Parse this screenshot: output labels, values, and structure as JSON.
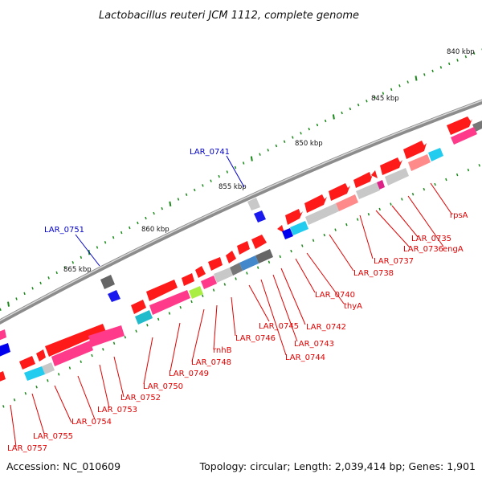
{
  "title": "Lactobacillus reuteri JCM 1112, complete genome",
  "footer": {
    "accession": "Accession: NC_010609",
    "topology": "Topology: circular; Length: 2,039,414 bp; Genes: 1,901"
  },
  "ticks": [
    {
      "label": "840 kbp"
    },
    {
      "label": "845 kbp"
    },
    {
      "label": "850 kbp"
    },
    {
      "label": "855 kbp"
    },
    {
      "label": "860 kbp"
    },
    {
      "label": "865 kbp"
    }
  ],
  "genes_red": [
    "rpsA",
    "engA",
    "LAR_0735",
    "LAR_0736",
    "LAR_0737",
    "LAR_0738",
    "thyA",
    "LAR_0740",
    "LAR_0742",
    "LAR_0743",
    "LAR_0744",
    "LAR_0745",
    "LAR_0746",
    "rnhB",
    "LAR_0748",
    "LAR_0749",
    "LAR_0750",
    "LAR_0752",
    "LAR_0753",
    "LAR_0754",
    "LAR_0755",
    "LAR_0757"
  ],
  "genes_blue": [
    "LAR_0741",
    "LAR_0751"
  ],
  "colors": {
    "backbone": "#8a8a8a",
    "forward_gene": "#ff0000",
    "label_red": "#e00000",
    "label_blue": "#0000cc",
    "tick_green": "#1a8a1a"
  }
}
